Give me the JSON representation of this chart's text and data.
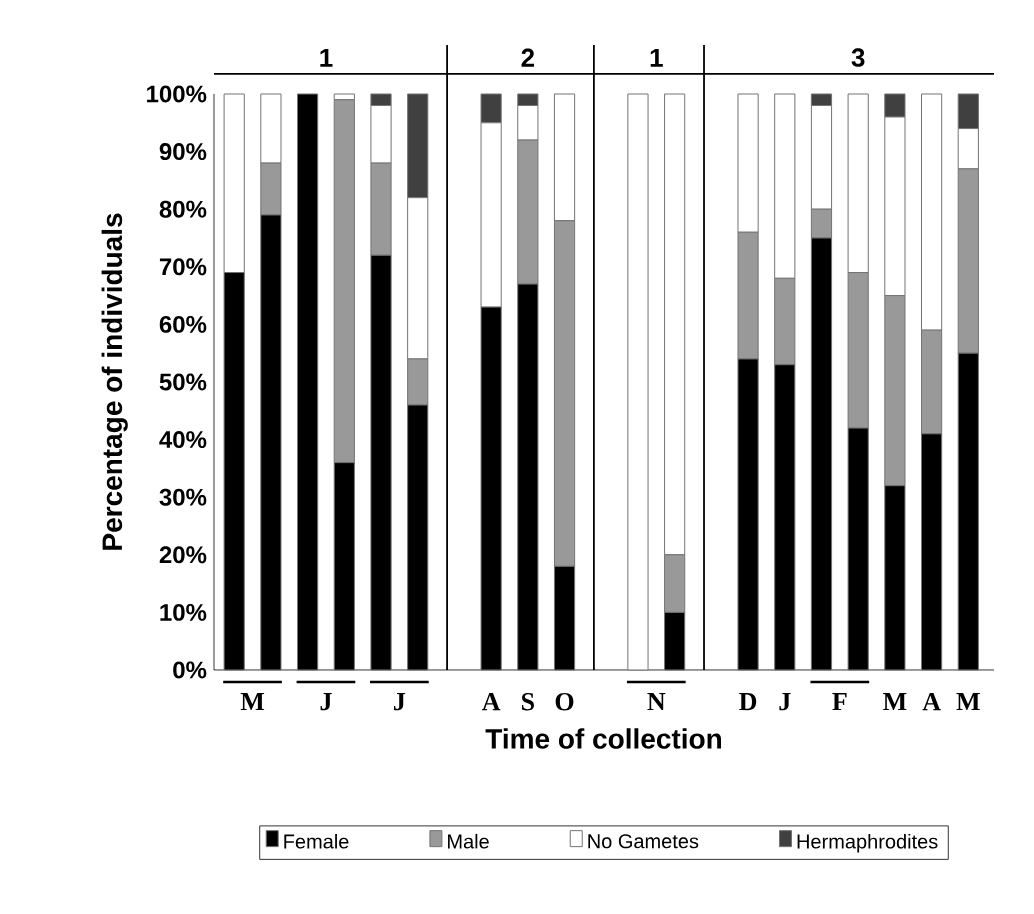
{
  "chart_data": {
    "type": "bar",
    "stacked": true,
    "xlabel": "Time of collection",
    "ylabel": "Percentage of individuals",
    "categories": [
      "M",
      null,
      "J",
      null,
      "J",
      null,
      null,
      "A",
      "S",
      "O",
      null,
      "N",
      null,
      null,
      "D",
      "J",
      "F",
      null,
      "M",
      "A",
      "M"
    ],
    "series": [
      {
        "name": "Female",
        "color": "#000000",
        "values": [
          69,
          79,
          100,
          36,
          72,
          46,
          null,
          63,
          67,
          18,
          null,
          0,
          10,
          null,
          54,
          53,
          75,
          42,
          32,
          41,
          55
        ]
      },
      {
        "name": "Male",
        "color": "#999999",
        "values": [
          0,
          9,
          0,
          63,
          16,
          8,
          null,
          0,
          25,
          60,
          null,
          0,
          10,
          null,
          22,
          15,
          5,
          27,
          33,
          18,
          32
        ]
      },
      {
        "name": "No Gametes",
        "color": "#ffffff",
        "values": [
          31,
          12,
          0,
          1,
          10,
          28,
          null,
          32,
          6,
          22,
          null,
          100,
          80,
          null,
          24,
          32,
          18,
          31,
          31,
          41,
          7
        ]
      },
      {
        "name": "Hermaphrodites",
        "color": "#404040",
        "values": [
          0,
          0,
          0,
          0,
          2,
          18,
          null,
          5,
          2,
          0,
          null,
          0,
          0,
          null,
          0,
          0,
          2,
          0,
          4,
          0,
          6
        ]
      }
    ],
    "ylim": [
      0,
      100
    ],
    "yticks": [
      {
        "value": 0,
        "label": "0%"
      },
      {
        "value": 10,
        "label": "10%"
      },
      {
        "value": 20,
        "label": "20%"
      },
      {
        "value": 30,
        "label": "30%"
      },
      {
        "value": 40,
        "label": "40%"
      },
      {
        "value": 50,
        "label": "50%"
      },
      {
        "value": 60,
        "label": "60%"
      },
      {
        "value": 70,
        "label": "70%"
      },
      {
        "value": 80,
        "label": "80%"
      },
      {
        "value": 90,
        "label": "90%"
      },
      {
        "value": 100,
        "label": "100%"
      }
    ],
    "annotations": [
      "1",
      "2",
      "1",
      "3"
    ],
    "legend": "bottom",
    "grid": false
  }
}
